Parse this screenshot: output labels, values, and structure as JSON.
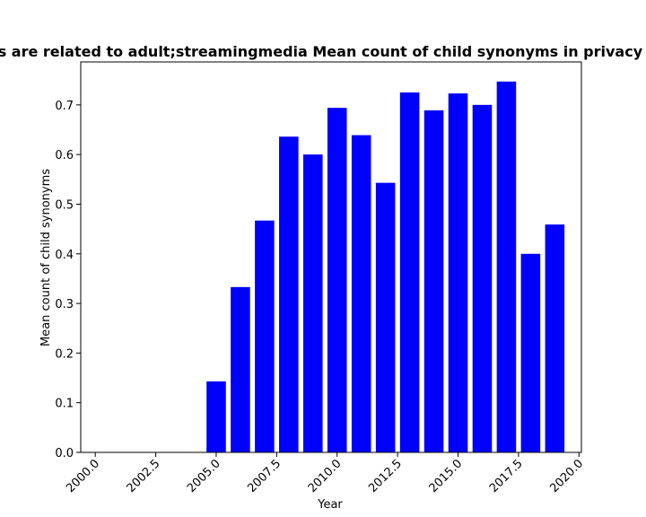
{
  "chart_data": {
    "type": "bar",
    "title": "es are related to adult;streamingmedia Mean count of child synonyms in privacy p",
    "xlabel": "Year",
    "ylabel": "Mean count of child synonyms",
    "x": [
      2005,
      2006,
      2007,
      2008,
      2009,
      2010,
      2011,
      2012,
      2013,
      2014,
      2015,
      2016,
      2017,
      2018,
      2019
    ],
    "values": [
      0.143,
      0.333,
      0.467,
      0.636,
      0.6,
      0.694,
      0.639,
      0.543,
      0.725,
      0.689,
      0.723,
      0.7,
      0.747,
      0.4,
      0.459
    ],
    "xlim": [
      1999.4,
      2020.1
    ],
    "ylim": [
      0,
      0.7865
    ],
    "xticks": [
      "2000.0",
      "2002.5",
      "2005.0",
      "2007.5",
      "2010.0",
      "2012.5",
      "2015.0",
      "2017.5",
      "2020.0"
    ],
    "yticks": [
      "0.0",
      "0.1",
      "0.2",
      "0.3",
      "0.4",
      "0.5",
      "0.6",
      "0.7"
    ],
    "bar_color": "#0000ff",
    "grid": false,
    "legend": "none"
  }
}
